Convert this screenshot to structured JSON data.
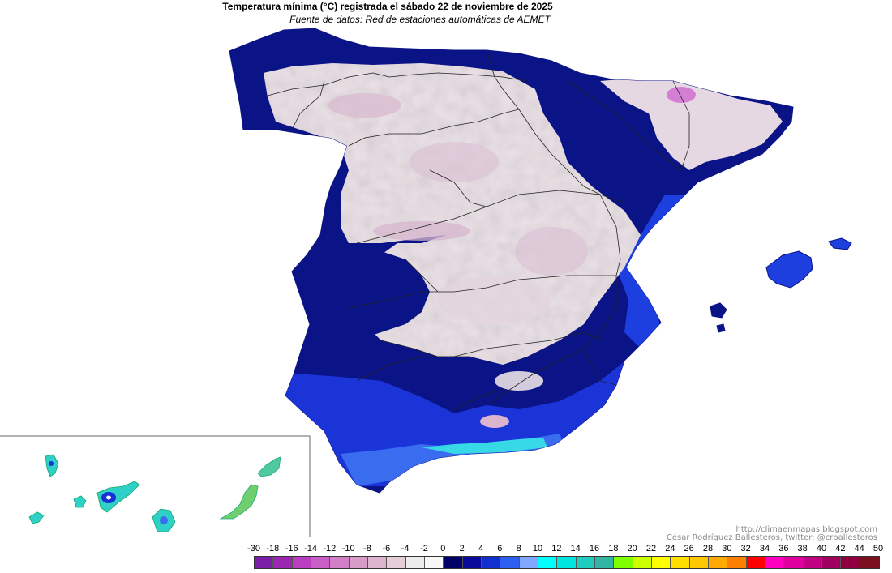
{
  "header": {
    "title": "Temperatura mínima (°C) registrada el sábado 22 de noviembre de 2025",
    "subtitle": "Fuente de datos: Red de estaciones automáticas de AEMET"
  },
  "credits": {
    "url": "http://climaenmapas.blogspot.com",
    "author": "César Rodríguez Ballesteros, twitter: @crballesteros"
  },
  "legend": {
    "labels": [
      "-30",
      "-18",
      "-16",
      "-14",
      "-12",
      "-10",
      "-8",
      "-6",
      "-4",
      "-2",
      "0",
      "2",
      "4",
      "6",
      "8",
      "10",
      "12",
      "14",
      "16",
      "18",
      "20",
      "22",
      "24",
      "26",
      "28",
      "30",
      "32",
      "34",
      "36",
      "38",
      "40",
      "42",
      "44",
      "50"
    ],
    "colors": [
      "#7a1fa8",
      "#9b27b0",
      "#b93ec0",
      "#c95ec8",
      "#d27fc8",
      "#d89cc8",
      "#dcb4cd",
      "#e4cfd8",
      "#ececec",
      "#f7f7f7",
      "#000066",
      "#0a0a9a",
      "#1230d0",
      "#2e5ef0",
      "#80a8ff",
      "#00ffff",
      "#00e5e0",
      "#20ccc0",
      "#33b5a5",
      "#7fff00",
      "#ccff00",
      "#ffff00",
      "#ffe000",
      "#ffc800",
      "#ffaa00",
      "#ff8000",
      "#ff0000",
      "#ff00c0",
      "#e000a0",
      "#c00080",
      "#a00060",
      "#900040",
      "#7a1020"
    ]
  },
  "map": {
    "region": "Península Ibérica y Baleares",
    "inset": "Islas Canarias",
    "palette": {
      "coast_cold": "#0b1487",
      "blue": "#1730d8",
      "light_blue": "#3a6cf0",
      "cyan": "#00e8e0",
      "teal": "#2ab7a8",
      "green": "#7fe030",
      "interior_frost": "#e8dfe4",
      "pink_frost": "#dcc0d4",
      "magenta_frost": "#d070d0",
      "near_zero": "#f5f4f4"
    }
  }
}
